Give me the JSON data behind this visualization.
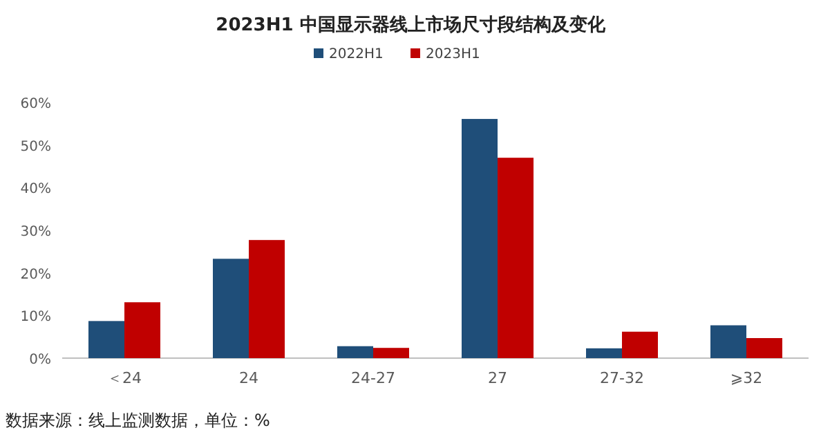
{
  "chart_data": {
    "type": "bar",
    "title": "2023H1 中国显示器线上市场尺寸段结构及变化",
    "categories": [
      "＜24",
      "24",
      "24-27",
      "27",
      "27-32",
      "⩾32"
    ],
    "series": [
      {
        "name": "2022H1",
        "color": "#1f4e79",
        "values": [
          8.7,
          23.3,
          2.8,
          56.1,
          2.3,
          7.7
        ]
      },
      {
        "name": "2023H1",
        "color": "#c00000",
        "values": [
          13.1,
          27.7,
          2.4,
          47.0,
          6.2,
          4.7
        ]
      }
    ],
    "ylim": [
      0,
      60
    ],
    "yticks": [
      {
        "value": 0,
        "label": "0%"
      },
      {
        "value": 10,
        "label": "10%"
      },
      {
        "value": 20,
        "label": "20%"
      },
      {
        "value": 30,
        "label": "30%"
      },
      {
        "value": 40,
        "label": "40%"
      },
      {
        "value": 50,
        "label": "50%"
      },
      {
        "value": 60,
        "label": "60%"
      }
    ],
    "legend": "top",
    "annotations": [
      "数据来源：线上监测数据，单位：%"
    ]
  }
}
